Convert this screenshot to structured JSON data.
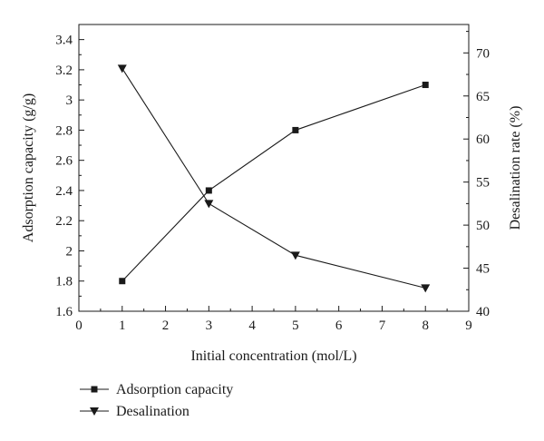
{
  "chart_data": {
    "type": "line",
    "xlabel": "Initial concentration (mol/L)",
    "ylabel_left": "Adsorption capacity (g/g)",
    "ylabel_right": "Desalination rate (%)",
    "xlim": [
      0,
      9
    ],
    "ylim_left": [
      1.6,
      3.5
    ],
    "ylim_right": [
      40,
      73.3
    ],
    "x_ticks": [
      "0",
      "1",
      "2",
      "3",
      "4",
      "5",
      "6",
      "7",
      "8",
      "9"
    ],
    "y_left_ticks": [
      "1.6",
      "1.8",
      "2",
      "2.2",
      "2.4",
      "2.6",
      "2.8",
      "3",
      "3.2",
      "3.4"
    ],
    "y_right_ticks": [
      "40",
      "45",
      "50",
      "55",
      "60",
      "65",
      "70"
    ],
    "grid": false,
    "legend_position": "bottom-left",
    "series": [
      {
        "name": "Adsorption capacity",
        "axis": "left",
        "marker": "square",
        "x": [
          1,
          3,
          5,
          8
        ],
        "values": [
          1.8,
          2.4,
          2.8,
          3.1
        ]
      },
      {
        "name": "Desalination",
        "axis": "right",
        "marker": "triangle-down",
        "x": [
          1,
          3,
          5,
          8
        ],
        "values": [
          68.2,
          52.5,
          46.5,
          42.7
        ]
      }
    ]
  }
}
